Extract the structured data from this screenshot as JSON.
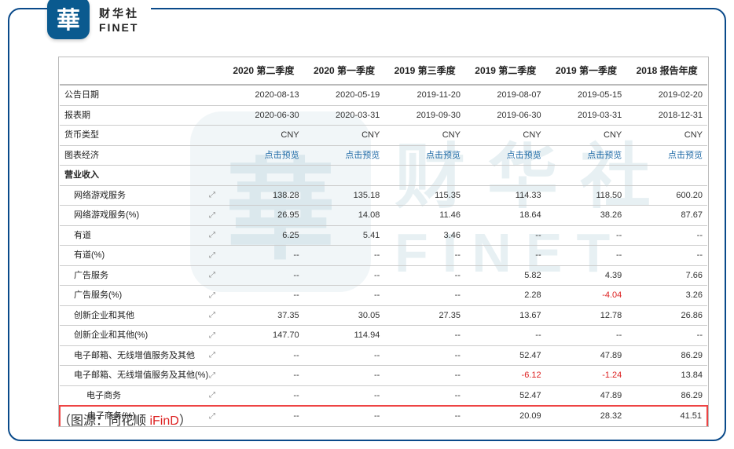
{
  "brand": {
    "cn": "财华社",
    "en": "FINET",
    "glyph": "華"
  },
  "source": {
    "prefix": "（图源：",
    "name": "同花顺 ",
    "ifind": "iFinD",
    "suffix": "）"
  },
  "table": {
    "columns": [
      "2020 第二季度",
      "2020 第一季度",
      "2019 第三季度",
      "2019 第二季度",
      "2019 第一季度",
      "2018 报告年度"
    ],
    "chart_icon": "⤢",
    "rows": [
      {
        "type": "data",
        "label": "公告日期",
        "ind": 0,
        "icon": false,
        "cells": [
          "2020-08-13",
          "2020-05-19",
          "2019-11-20",
          "2019-08-07",
          "2019-05-15",
          "2019-02-20"
        ]
      },
      {
        "type": "data",
        "label": "报表期",
        "ind": 0,
        "icon": false,
        "cells": [
          "2020-06-30",
          "2020-03-31",
          "2019-09-30",
          "2019-06-30",
          "2019-03-31",
          "2018-12-31"
        ]
      },
      {
        "type": "data",
        "label": "货币类型",
        "ind": 0,
        "icon": false,
        "cells": [
          "CNY",
          "CNY",
          "CNY",
          "CNY",
          "CNY",
          "CNY"
        ]
      },
      {
        "type": "data",
        "label": "图表经济",
        "ind": 0,
        "icon": false,
        "link": true,
        "cells": [
          "点击预览",
          "点击预览",
          "点击预览",
          "点击预览",
          "点击预览",
          "点击预览"
        ]
      },
      {
        "type": "section",
        "label": "营业收入"
      },
      {
        "type": "data",
        "label": "网络游戏服务",
        "ind": 1,
        "icon": true,
        "cells": [
          "138.28",
          "135.18",
          "115.35",
          "114.33",
          "118.50",
          "600.20"
        ]
      },
      {
        "type": "data",
        "label": "网络游戏服务(%)",
        "ind": 1,
        "icon": true,
        "cells": [
          "26.95",
          "14.08",
          "11.46",
          "18.64",
          "38.26",
          "87.67"
        ]
      },
      {
        "type": "data",
        "label": "有道",
        "ind": 1,
        "icon": true,
        "cells": [
          "6.25",
          "5.41",
          "3.46",
          "--",
          "--",
          "--"
        ]
      },
      {
        "type": "data",
        "label": "有道(%)",
        "ind": 1,
        "icon": true,
        "cells": [
          "--",
          "--",
          "--",
          "--",
          "--",
          "--"
        ]
      },
      {
        "type": "data",
        "label": "广告服务",
        "ind": 1,
        "icon": true,
        "cells": [
          "--",
          "--",
          "--",
          "5.82",
          "4.39",
          "7.66"
        ]
      },
      {
        "type": "data",
        "label": "广告服务(%)",
        "ind": 1,
        "icon": true,
        "cells": [
          "--",
          "--",
          "--",
          "2.28",
          "-4.04",
          "3.26"
        ],
        "neg": [
          false,
          false,
          false,
          false,
          true,
          false
        ]
      },
      {
        "type": "data",
        "label": "创新企业和其他",
        "ind": 1,
        "icon": true,
        "cells": [
          "37.35",
          "30.05",
          "27.35",
          "13.67",
          "12.78",
          "26.86"
        ]
      },
      {
        "type": "data",
        "label": "创新企业和其他(%)",
        "ind": 1,
        "icon": true,
        "cells": [
          "147.70",
          "114.94",
          "--",
          "--",
          "--",
          "--"
        ]
      },
      {
        "type": "data",
        "label": "电子邮箱、无线增值服务及其他",
        "ind": 1,
        "icon": true,
        "cells": [
          "--",
          "--",
          "--",
          "52.47",
          "47.89",
          "86.29"
        ]
      },
      {
        "type": "data",
        "label": "电子邮箱、无线增值服务及其他(%)",
        "ind": 1,
        "icon": true,
        "cells": [
          "--",
          "--",
          "--",
          "-6.12",
          "-1.24",
          "13.84"
        ],
        "neg": [
          false,
          false,
          false,
          true,
          true,
          false
        ]
      },
      {
        "type": "data",
        "label": "电子商务",
        "ind": 2,
        "icon": true,
        "cells": [
          "--",
          "--",
          "--",
          "52.47",
          "47.89",
          "86.29"
        ]
      },
      {
        "type": "data",
        "label": "电子商务(%)",
        "ind": 2,
        "icon": true,
        "highlight": true,
        "cells": [
          "--",
          "--",
          "--",
          "20.09",
          "28.32",
          "41.51"
        ]
      }
    ]
  }
}
